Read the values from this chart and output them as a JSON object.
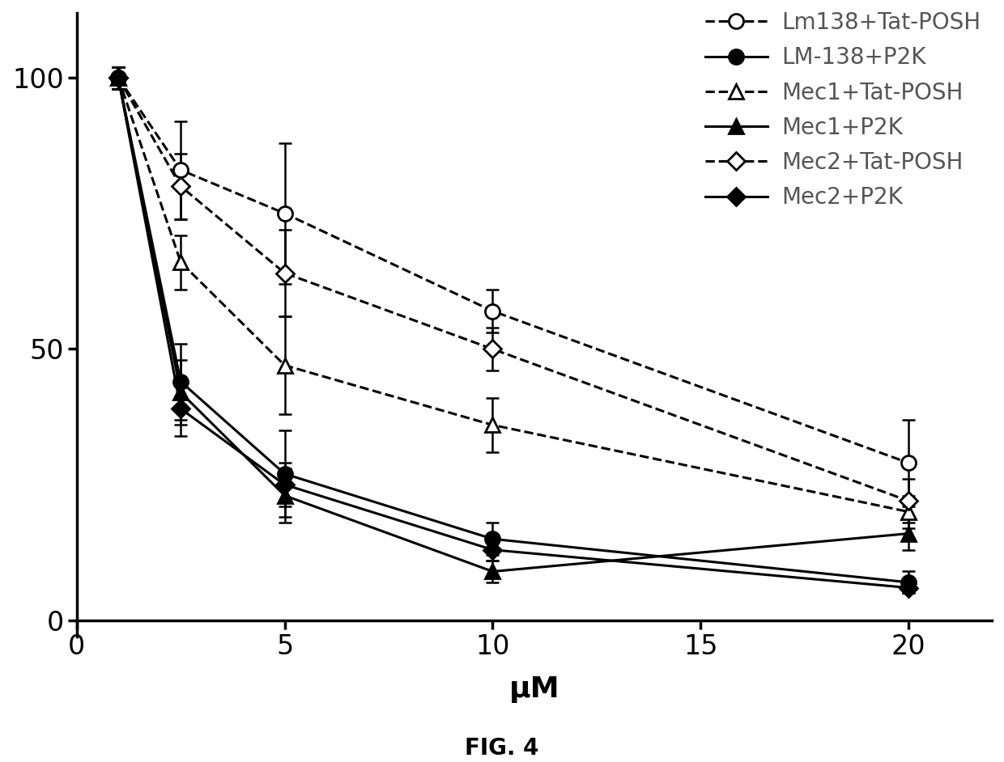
{
  "x": [
    1,
    2.5,
    5,
    10,
    20
  ],
  "series": [
    {
      "label": "Lm138+Tat-POSH",
      "y": [
        100,
        83,
        75,
        57,
        29
      ],
      "yerr": [
        2,
        9,
        13,
        4,
        8
      ],
      "marker": "o",
      "fillstyle": "none",
      "linestyle": "--",
      "color": "black",
      "markersize": 13,
      "linewidth": 2.2
    },
    {
      "label": "LM-138+P2K",
      "y": [
        100,
        44,
        27,
        15,
        7
      ],
      "yerr": [
        2,
        7,
        8,
        3,
        2
      ],
      "marker": "o",
      "fillstyle": "full",
      "linestyle": "-",
      "color": "black",
      "markersize": 13,
      "linewidth": 2.2
    },
    {
      "label": "Mec1+Tat-POSH",
      "y": [
        100,
        66,
        47,
        36,
        20
      ],
      "yerr": [
        2,
        5,
        9,
        5,
        3
      ],
      "marker": "^",
      "fillstyle": "none",
      "linestyle": "--",
      "color": "black",
      "markersize": 13,
      "linewidth": 2.2
    },
    {
      "label": "Mec1+P2K",
      "y": [
        100,
        42,
        23,
        9,
        16
      ],
      "yerr": [
        2,
        6,
        5,
        2,
        3
      ],
      "marker": "^",
      "fillstyle": "full",
      "linestyle": "-",
      "color": "black",
      "markersize": 13,
      "linewidth": 2.2
    },
    {
      "label": "Mec2+Tat-POSH",
      "y": [
        100,
        80,
        64,
        50,
        22
      ],
      "yerr": [
        2,
        6,
        8,
        4,
        4
      ],
      "marker": "D",
      "fillstyle": "none",
      "linestyle": "--",
      "color": "black",
      "markersize": 11,
      "linewidth": 2.2
    },
    {
      "label": "Mec2+P2K",
      "y": [
        100,
        39,
        25,
        13,
        6
      ],
      "yerr": [
        2,
        5,
        4,
        2,
        1
      ],
      "marker": "D",
      "fillstyle": "full",
      "linestyle": "-",
      "color": "black",
      "markersize": 11,
      "linewidth": 2.2
    }
  ],
  "xlabel": "μM",
  "xlim": [
    0,
    22
  ],
  "ylim": [
    -3,
    112
  ],
  "xticks": [
    0,
    5,
    10,
    15,
    20
  ],
  "yticks": [
    0,
    50,
    100
  ],
  "figure_caption": "FIG. 4",
  "background_color": "#ffffff",
  "tick_fontsize": 24,
  "label_fontsize": 26,
  "legend_fontsize": 20,
  "caption_fontsize": 20
}
